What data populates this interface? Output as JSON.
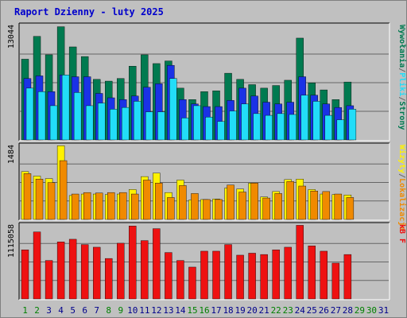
{
  "chart_data": {
    "type": "bar",
    "title": "Raport Dzienny -  luty 2025",
    "colors": {
      "background": "#C0C0C0",
      "border": "#808080",
      "grid": "#666666",
      "title": "#0000CC",
      "odwiedziny": "#007A50",
      "strony": "#1A32E6",
      "pliki": "#22DDF8",
      "lokalizacje": "#F08A00",
      "wizyty": "#FFF200",
      "kb": "#EE1111",
      "weekday_label": "#00008B",
      "weekend_label": "#008000"
    },
    "days": [
      "1",
      "2",
      "3",
      "4",
      "5",
      "6",
      "7",
      "8",
      "9",
      "10",
      "11",
      "12",
      "13",
      "14",
      "15",
      "16",
      "17",
      "18",
      "19",
      "20",
      "21",
      "22",
      "23",
      "24",
      "25",
      "26",
      "27",
      "28",
      "29",
      "30",
      "31"
    ],
    "weekend_days": [
      "1",
      "2",
      "8",
      "9",
      "15",
      "16",
      "22",
      "23",
      "29",
      "30"
    ],
    "panels": [
      {
        "id": "hits",
        "max_label": "13044",
        "ymax": 13044,
        "side_labels": [
          {
            "text": "Wywołania",
            "color_key": "odwiedziny"
          },
          {
            "text": "/",
            "color_key": "grid"
          },
          {
            "text": "Pliki",
            "color_key": "pliki"
          },
          {
            "text": "/",
            "color_key": "grid"
          },
          {
            "text": "Strony",
            "color_key": "odwiedziny"
          }
        ],
        "series": [
          {
            "color_key": "odwiedziny",
            "values": [
              9200,
              11800,
              9700,
              12900,
              10600,
              9500,
              6900,
              6700,
              7000,
              8400,
              9700,
              8700,
              9000,
              5900,
              4600,
              5500,
              5600,
              7600,
              6900,
              6300,
              5900,
              6200,
              6800,
              11600,
              6500,
              5700,
              4600,
              6600
            ]
          },
          {
            "color_key": "strony",
            "values": [
              7000,
              7300,
              5500,
              7400,
              7200,
              7200,
              5300,
              4800,
              4600,
              5000,
              6000,
              6400,
              8500,
              4600,
              4100,
              3800,
              3800,
              4500,
              5900,
              5000,
              4300,
              4100,
              4300,
              7200,
              5100,
              4100,
              3700,
              3900
            ]
          },
          {
            "color_key": "pliki",
            "values": [
              5900,
              5500,
              3900,
              7400,
              5400,
              3900,
              4200,
              3500,
              3700,
              4400,
              3200,
              3200,
              7000,
              2500,
              3900,
              2600,
              2100,
              3300,
              4100,
              3000,
              2800,
              3000,
              2900,
              5100,
              4400,
              2800,
              2300,
              3500
            ]
          }
        ]
      },
      {
        "id": "visits",
        "max_label": "1484",
        "ymax": 1484,
        "side_labels": [
          {
            "text": "Wizyty",
            "color_key": "wizyty"
          },
          {
            "text": "/",
            "color_key": "grid"
          },
          {
            "text": "Lokalizacje",
            "color_key": "lokalizacje"
          }
        ],
        "series": [
          {
            "color_key": "wizyty",
            "values": [
              960,
              870,
              820,
              1480,
              480,
              510,
              510,
              500,
              510,
              600,
              860,
              930,
              540,
              790,
              390,
              400,
              410,
              630,
              610,
              730,
              450,
              560,
              800,
              810,
              600,
              510,
              500,
              490
            ]
          },
          {
            "color_key": "lokalizacje",
            "values": [
              920,
              810,
              740,
              1180,
              510,
              540,
              530,
              540,
              540,
              510,
              790,
              730,
              440,
              680,
              520,
              400,
              400,
              690,
              550,
              730,
              430,
              520,
              760,
              670,
              570,
              560,
              510,
              440
            ]
          }
        ]
      },
      {
        "id": "kb",
        "max_label": "1115058",
        "ymax": 1115058,
        "side_labels": [
          {
            "text": "kB F",
            "color_key": "kb"
          }
        ],
        "series": [
          {
            "color_key": "kb",
            "values": [
              740000,
              1010000,
              580000,
              860000,
              900000,
              820000,
              780000,
              610000,
              840000,
              1100000,
              880000,
              1060000,
              700000,
              580000,
              480000,
              720000,
              720000,
              820000,
              660000,
              690000,
              670000,
              740000,
              780000,
              1110000,
              800000,
              720000,
              540000,
              670000
            ]
          }
        ]
      }
    ]
  }
}
